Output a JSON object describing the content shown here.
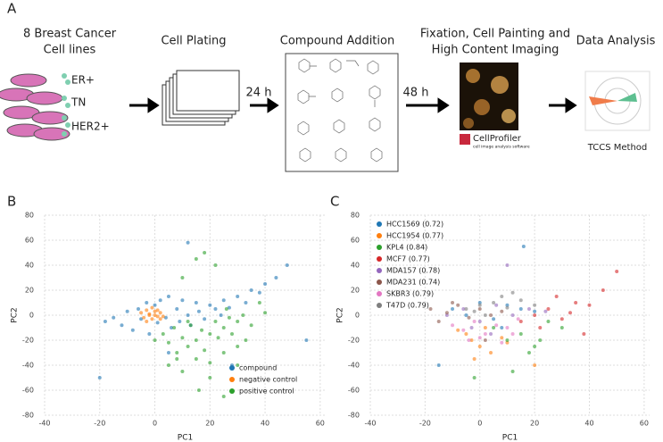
{
  "panels": [
    "A",
    "B",
    "C"
  ],
  "workflow": {
    "steps": [
      [
        "8 Breast Cancer",
        "Cell lines"
      ],
      [
        "Cell Plating"
      ],
      [
        "Compound Addition"
      ],
      [
        "Fixation, Cell Painting and",
        "High Content Imaging"
      ],
      [
        "Data Analysis"
      ]
    ],
    "cell_groups": [
      "ER+",
      "TN",
      "HER2+"
    ],
    "times": [
      "24 h",
      "48 h"
    ],
    "software": "CellProfiler",
    "software_subtitle": "cell image analysis software",
    "method": "TCCS Method"
  },
  "chart_data": [
    {
      "type": "scatter",
      "xlabel": "PC1",
      "ylabel": "PC2",
      "xlim": [
        -40,
        62
      ],
      "ylim": [
        -80,
        80
      ],
      "xticks": [
        -40,
        -20,
        0,
        20,
        40,
        60
      ],
      "yticks": [
        -80,
        -60,
        -40,
        -20,
        0,
        20,
        40,
        60,
        80
      ],
      "grid": true,
      "legend": "lower right",
      "series": [
        {
          "name": "compound",
          "color": "#1f77b4",
          "x": [
            -18,
            -15,
            -12,
            -10,
            -8,
            -6,
            -5,
            -3,
            -2,
            0,
            1,
            2,
            4,
            5,
            6,
            8,
            9,
            10,
            12,
            13,
            15,
            16,
            18,
            20,
            22,
            24,
            25,
            27,
            30,
            33,
            35,
            38,
            40,
            44,
            48,
            -20,
            5,
            12,
            28,
            55
          ],
          "values": [
            -5,
            -2,
            -8,
            3,
            -12,
            5,
            -3,
            10,
            -15,
            8,
            -6,
            12,
            -2,
            15,
            -10,
            5,
            -5,
            12,
            0,
            -8,
            10,
            3,
            -3,
            8,
            5,
            0,
            12,
            6,
            15,
            10,
            20,
            18,
            25,
            30,
            40,
            -50,
            -30,
            58,
            -40,
            -20
          ]
        },
        {
          "name": "negative control",
          "color": "#ff7f0e",
          "x": [
            -5,
            -4,
            -3,
            -2,
            -1,
            0,
            1,
            2,
            -3,
            -1,
            0,
            2,
            -2,
            1,
            3
          ],
          "values": [
            2,
            -2,
            4,
            0,
            -3,
            3,
            -1,
            2,
            -5,
            6,
            0,
            -3,
            1,
            4,
            -1
          ]
        },
        {
          "name": "positive control",
          "color": "#2ca02c",
          "x": [
            0,
            3,
            5,
            7,
            8,
            10,
            12,
            13,
            15,
            17,
            18,
            20,
            22,
            23,
            25,
            27,
            28,
            30,
            32,
            35,
            5,
            10,
            15,
            20,
            25,
            30,
            18,
            22,
            16,
            8,
            12,
            26,
            33,
            38,
            40,
            25,
            10,
            20,
            30,
            15
          ],
          "values": [
            -20,
            -15,
            -22,
            -10,
            -30,
            -18,
            -25,
            -8,
            -20,
            -12,
            -28,
            -15,
            -5,
            -18,
            -10,
            -2,
            -15,
            -5,
            0,
            -8,
            -40,
            -45,
            -35,
            -50,
            -30,
            -25,
            50,
            40,
            -60,
            -35,
            -5,
            5,
            -20,
            10,
            2,
            -65,
            30,
            -38,
            -40,
            45
          ]
        }
      ]
    },
    {
      "type": "scatter",
      "xlabel": "PC1",
      "ylabel": "PC2",
      "xlim": [
        -40,
        62
      ],
      "ylim": [
        -80,
        80
      ],
      "xticks": [
        -40,
        -20,
        0,
        20,
        40,
        60
      ],
      "yticks": [
        -80,
        -60,
        -40,
        -20,
        0,
        20,
        40,
        60,
        80
      ],
      "grid": true,
      "legend": "upper left",
      "series": [
        {
          "name": "HCC1569 (0.72)",
          "color": "#1f77b4",
          "x": [
            -10,
            -5,
            0,
            5,
            10,
            15,
            20,
            -15,
            8,
            16
          ],
          "values": [
            5,
            0,
            10,
            -3,
            8,
            5,
            3,
            -40,
            -10,
            55
          ]
        },
        {
          "name": "HCC1954 (0.77)",
          "color": "#ff7f0e",
          "x": [
            -5,
            -3,
            0,
            2,
            4,
            8,
            -2,
            10,
            -8,
            20
          ],
          "values": [
            -15,
            -20,
            -25,
            -10,
            -30,
            -18,
            -35,
            -22,
            -12,
            -40
          ]
        },
        {
          "name": "KPL4 (0.84)",
          "color": "#2ca02c",
          "x": [
            5,
            10,
            15,
            20,
            25,
            12,
            18,
            22,
            30,
            -2
          ],
          "values": [
            -10,
            -20,
            -15,
            -25,
            -5,
            -45,
            -30,
            -20,
            -10,
            -50
          ]
        },
        {
          "name": "MCF7 (0.77)",
          "color": "#d62728",
          "x": [
            15,
            20,
            25,
            30,
            35,
            40,
            22,
            28,
            33,
            45,
            50,
            38
          ],
          "values": [
            -5,
            0,
            5,
            -3,
            10,
            8,
            -10,
            15,
            2,
            20,
            35,
            -15
          ]
        },
        {
          "name": "MDA157 (0.78)",
          "color": "#9467bd",
          "x": [
            -12,
            -6,
            0,
            6,
            12,
            18,
            24,
            4,
            -3,
            10
          ],
          "values": [
            0,
            5,
            -5,
            8,
            0,
            5,
            3,
            -15,
            -10,
            40
          ]
        },
        {
          "name": "MDA231 (0.74)",
          "color": "#8c564b",
          "x": [
            -18,
            -12,
            -8,
            -4,
            0,
            4,
            8,
            -15,
            -10,
            2
          ],
          "values": [
            5,
            2,
            8,
            -2,
            5,
            0,
            3,
            -5,
            10,
            -20
          ]
        },
        {
          "name": "SKBR3 (0.79)",
          "color": "#e377c2",
          "x": [
            -10,
            -6,
            -2,
            2,
            6,
            10,
            14,
            -4,
            0,
            8,
            12
          ],
          "values": [
            -8,
            -12,
            -5,
            -15,
            -8,
            -10,
            -3,
            -20,
            -18,
            -22,
            -15
          ]
        },
        {
          "name": "T47D (0.79)",
          "color": "#7f7f7f",
          "x": [
            -5,
            0,
            5,
            10,
            15,
            20,
            2,
            8,
            -2,
            12
          ],
          "values": [
            5,
            8,
            10,
            6,
            12,
            8,
            0,
            15,
            3,
            18
          ]
        }
      ]
    }
  ]
}
